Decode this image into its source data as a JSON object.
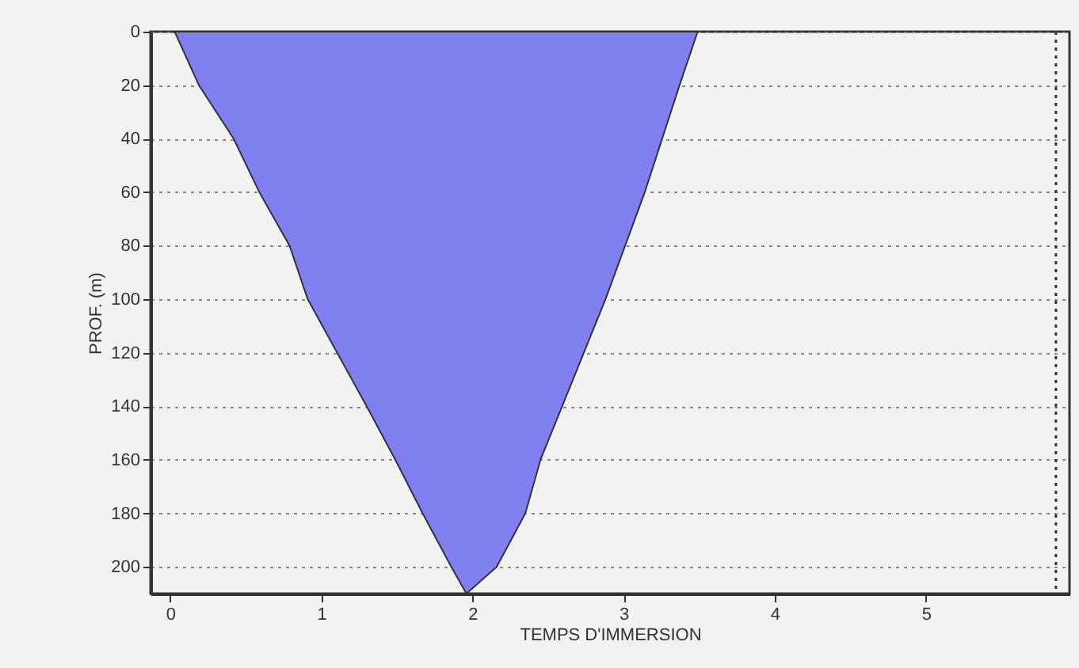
{
  "chart_data": {
    "type": "area",
    "xlabel": "TEMPS D'IMMERSION",
    "ylabel": "PROF. (m)",
    "x": [
      0.03,
      0.19,
      0.42,
      0.59,
      0.79,
      0.91,
      1.3,
      1.49,
      1.67,
      1.86,
      1.96,
      2.16,
      2.35,
      2.45,
      2.88,
      3.14,
      3.37,
      3.49
    ],
    "series": [
      {
        "color": "#8080f0",
        "values": [
          0,
          20,
          40,
          60,
          80,
          100,
          140,
          160,
          180,
          200,
          210,
          200,
          180,
          160,
          100,
          60,
          20,
          0
        ]
      }
    ],
    "xlim": [
      -0.13,
      5.95
    ],
    "xticks": [
      0,
      1,
      2,
      3,
      4,
      5
    ],
    "ylim": [
      210,
      0
    ],
    "yticks": [
      0,
      20,
      40,
      60,
      80,
      100,
      120,
      140,
      160,
      180,
      200
    ],
    "grid": "y",
    "ref_lines": [
      {
        "axis": "x",
        "value": 5.86,
        "line_style": "dotted"
      }
    ]
  }
}
